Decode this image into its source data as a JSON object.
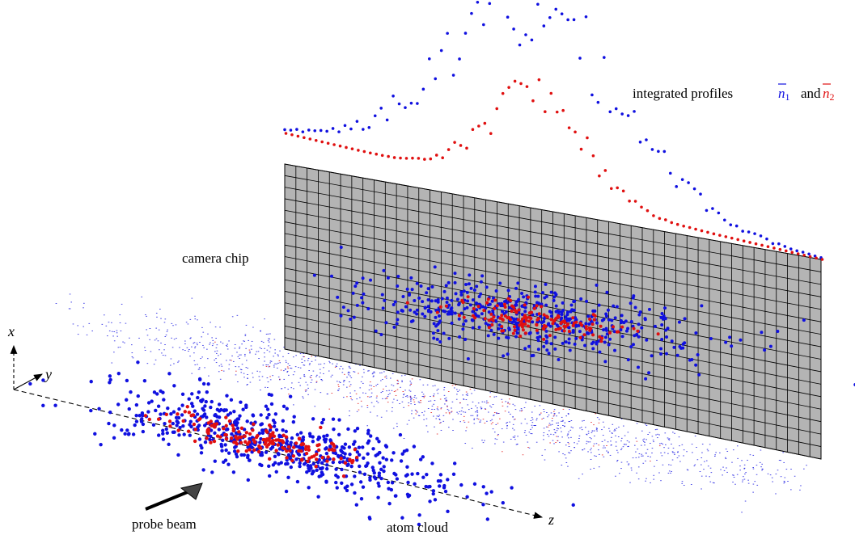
{
  "labels": {
    "profiles_prefix": "integrated profiles",
    "n1_symbol": "n",
    "n1_sub": "1",
    "and_word": "and",
    "n2_symbol": "n",
    "n2_sub": "2",
    "camera_chip": "camera chip",
    "probe_beam": "probe beam",
    "atom_cloud": "atom cloud",
    "axis_x": "x",
    "axis_y": "y",
    "axis_z": "z"
  },
  "colors": {
    "species1": "#1010e0",
    "species2": "#e01010",
    "chip_fill": "#b4b4b4",
    "grid_line": "#000000"
  },
  "camera_grid": {
    "columns": 48,
    "rows": 16
  }
}
